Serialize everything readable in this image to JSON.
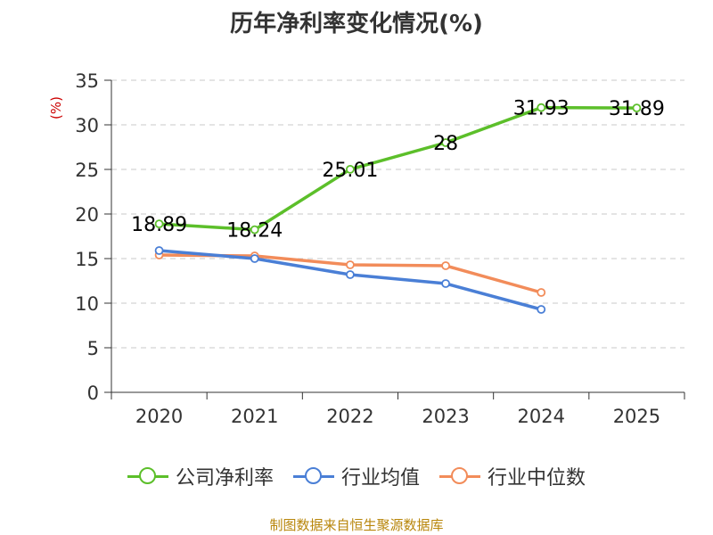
{
  "chart_data": {
    "type": "line",
    "title": "历年净利率变化情况(%)",
    "ylabel": "(%)",
    "xlabel": "",
    "categories": [
      "2020",
      "2021",
      "2022",
      "2023",
      "2024",
      "2025"
    ],
    "ylim": [
      0,
      35
    ],
    "yticks": [
      0,
      5,
      10,
      15,
      20,
      25,
      30,
      35
    ],
    "grid": true,
    "legend_position": "bottom",
    "series": [
      {
        "name": "公司净利率",
        "color": "#5cbf2a",
        "values": [
          18.89,
          18.24,
          25.01,
          28,
          31.93,
          31.89
        ],
        "labels": [
          "18.89",
          "18.24",
          "25.01",
          "28",
          "31.93",
          "31.89"
        ]
      },
      {
        "name": "行业均值",
        "color": "#4a7fd6",
        "values": [
          15.9,
          15.0,
          13.2,
          12.2,
          9.3,
          null
        ]
      },
      {
        "name": "行业中位数",
        "color": "#f28c5a",
        "values": [
          15.4,
          15.3,
          14.3,
          14.2,
          11.2,
          null
        ]
      }
    ],
    "source": "制图数据来自恒生聚源数据库"
  }
}
